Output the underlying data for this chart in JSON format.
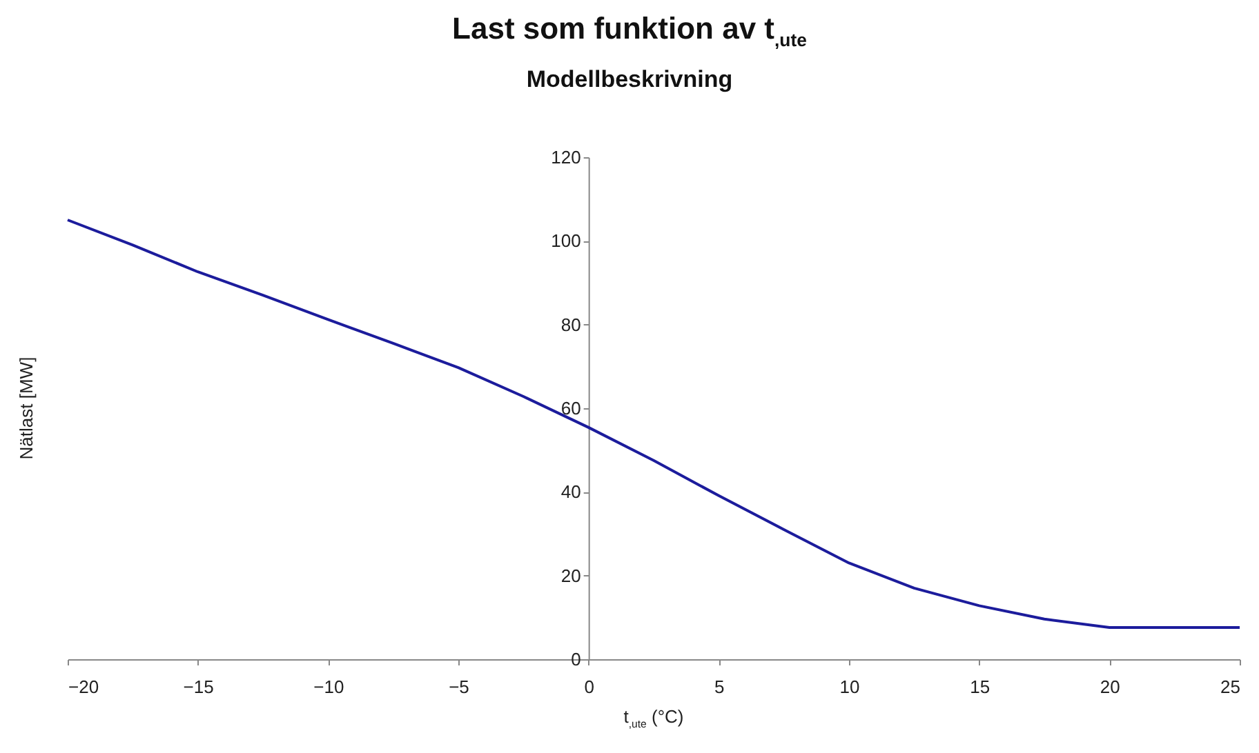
{
  "chart_data": {
    "type": "line",
    "title": "Last som funktion av t$_{,ute}$",
    "subtitle": "Modellbeskrivning",
    "xlabel": "t$_{,ute}$ (°C)",
    "ylabel": "Nätlast [MW]",
    "x": [
      -20,
      -17.5,
      -15,
      -12.5,
      -10,
      -7.5,
      -5,
      -2.5,
      0,
      2.5,
      5,
      7.5,
      10,
      12.5,
      15,
      17.5,
      20,
      25
    ],
    "series": [
      {
        "color": "#1c1c9c",
        "values": [
          105,
          99,
          92.6,
          87,
          81.2,
          75.5,
          69.7,
          62.8,
          55.4,
          47.5,
          39.1,
          31,
          23,
          17,
          12.8,
          9.6,
          7.6,
          7.6
        ]
      }
    ],
    "xlim": [
      -20,
      25
    ],
    "xticks": [
      -20,
      -15,
      -10,
      -5,
      0,
      5,
      10,
      15,
      20,
      25
    ],
    "ylim": [
      0,
      120
    ],
    "yticks": [
      0,
      20,
      40,
      60,
      80,
      100,
      120
    ],
    "grid": false,
    "legend": false,
    "marker": "none",
    "line_style": "solid"
  }
}
